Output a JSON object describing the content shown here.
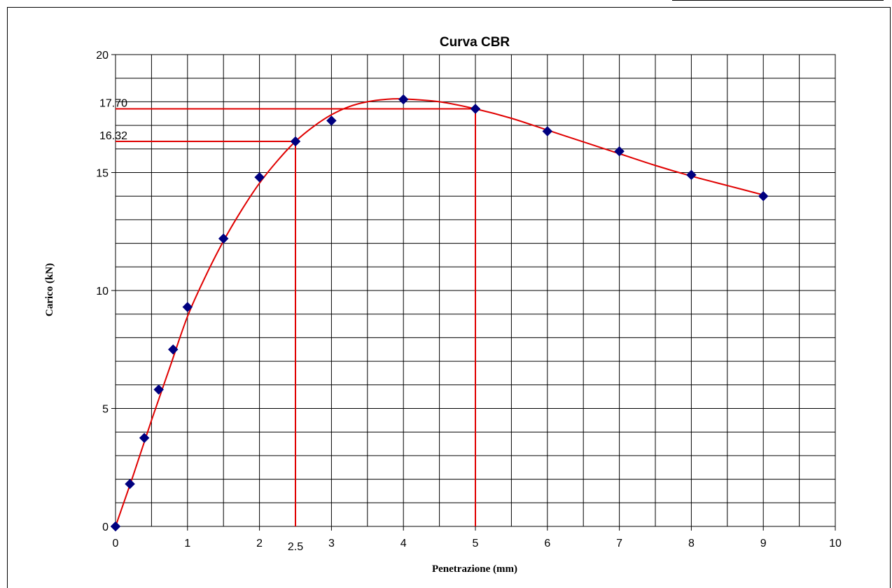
{
  "chart_data": {
    "type": "scatter",
    "title": "Curva CBR",
    "xlabel": "Penetrazione (mm)",
    "ylabel": "Carico (kN)",
    "xlim": [
      0,
      10
    ],
    "ylim": [
      0,
      20
    ],
    "x_ticks": [
      "0",
      "1",
      "2",
      "3",
      "4",
      "5",
      "6",
      "7",
      "8",
      "9",
      "10"
    ],
    "y_ticks": [
      "0",
      "5",
      "10",
      "15",
      "20"
    ],
    "grid": true,
    "marker_color": "#00007f",
    "curve_color": "#e00000",
    "series": [
      {
        "points": [
          [
            0,
            0
          ],
          [
            0.2,
            1.8
          ],
          [
            0.4,
            3.75
          ],
          [
            0.6,
            5.8
          ],
          [
            0.8,
            7.5
          ],
          [
            1.0,
            9.3
          ],
          [
            1.5,
            12.2
          ],
          [
            2.0,
            14.8
          ],
          [
            2.5,
            16.32
          ],
          [
            3.0,
            17.2
          ],
          [
            4.0,
            18.1
          ],
          [
            5.0,
            17.7
          ],
          [
            6.0,
            16.75
          ],
          [
            7.0,
            15.9
          ],
          [
            8.0,
            14.9
          ],
          [
            9.0,
            14.0
          ]
        ]
      }
    ],
    "trend_curve": [
      [
        0,
        0
      ],
      [
        0.25,
        2.2
      ],
      [
        0.5,
        4.5
      ],
      [
        0.75,
        6.7
      ],
      [
        1.0,
        8.9
      ],
      [
        1.25,
        10.6
      ],
      [
        1.5,
        12.1
      ],
      [
        1.75,
        13.4
      ],
      [
        2.0,
        14.55
      ],
      [
        2.25,
        15.5
      ],
      [
        2.5,
        16.32
      ],
      [
        2.75,
        16.95
      ],
      [
        3.0,
        17.45
      ],
      [
        3.25,
        17.8
      ],
      [
        3.5,
        18.0
      ],
      [
        3.75,
        18.1
      ],
      [
        4.0,
        18.12
      ],
      [
        4.5,
        18.0
      ],
      [
        5.0,
        17.7
      ],
      [
        5.5,
        17.3
      ],
      [
        6.0,
        16.8
      ],
      [
        6.5,
        16.3
      ],
      [
        7.0,
        15.8
      ],
      [
        7.5,
        15.3
      ],
      [
        8.0,
        14.85
      ],
      [
        8.5,
        14.45
      ],
      [
        9.0,
        14.05
      ]
    ],
    "annotations": [
      {
        "x": 2.5,
        "y": 16.32,
        "x_label": "2.5",
        "y_label": "16.32"
      },
      {
        "x": 5,
        "y": 17.7,
        "x_label": "",
        "y_label": "17.70"
      }
    ]
  }
}
